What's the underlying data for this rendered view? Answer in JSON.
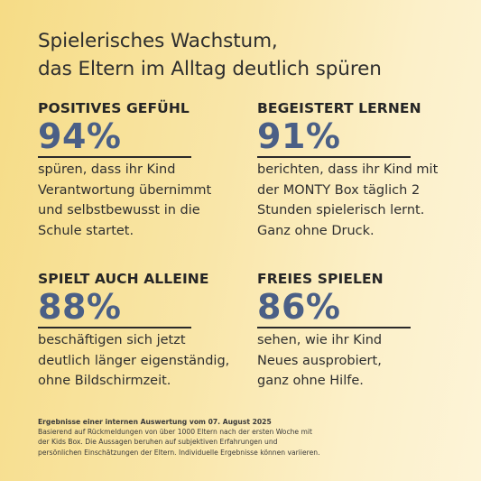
{
  "headline": {
    "line1": "Spielerisches Wachstum,",
    "line2": "das Eltern im Alltag deutlich spüren"
  },
  "stats": [
    {
      "title": "POSITIVES GEFÜHL",
      "value": "94%",
      "desc": [
        "spüren, dass ihr Kind",
        "Verantwortung übernimmt",
        "und selbstbewusst in die",
        "Schule startet."
      ]
    },
    {
      "title": "BEGEISTERT LERNEN",
      "value": "91%",
      "desc": [
        "berichten, dass ihr Kind mit",
        "der MONTY Box täglich 2",
        "Stunden spielerisch lernt.",
        "Ganz ohne Druck."
      ]
    },
    {
      "title": "SPIELT AUCH ALLEINE",
      "value": "88%",
      "desc": [
        "beschäftigen sich jetzt",
        "deutlich länger eigenständig,",
        "ohne Bildschirmzeit."
      ]
    },
    {
      "title": "FREIES SPIELEN",
      "value": "86%",
      "desc": [
        "sehen, wie ihr Kind",
        "Neues ausprobiert,",
        "ganz ohne Hilfe."
      ]
    }
  ],
  "footnote": {
    "title": "Ergebnisse einer internen Auswertung vom 07. August 2025",
    "lines": [
      "Basierend auf Rückmeldungen von über 1000 Eltern nach der ersten Woche mit",
      "der Kids Box.  Die Aussagen beruhen auf subjektiven Erfahrungen und",
      "persönlichen Einschätzungen der Eltern.  Individuelle Ergebnisse können variieren."
    ]
  },
  "colors": {
    "accent_value": "#4a5f86",
    "text": "#2e2e2e",
    "background_start": "#f6dc86",
    "background_end": "#fdf4d8"
  }
}
